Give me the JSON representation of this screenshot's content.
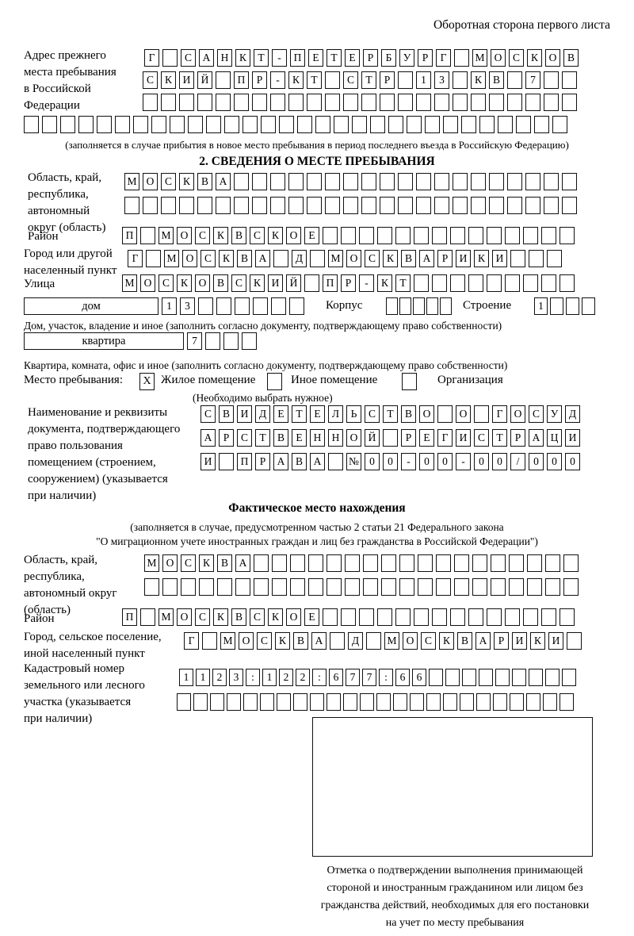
{
  "header": {
    "note": "Оборотная сторона первого листа"
  },
  "prev_address": {
    "label": "Адрес прежнего\nместа пребывания\nв Российской\nФедерации",
    "row1": {
      "text": "Г САНКТ-ПЕТЕРБУРГ МОСКОВ",
      "len": 24
    },
    "row2": {
      "text": "СКИЙ ПР-КТ СТР 13 КВ 7",
      "len": 24
    },
    "row3": {
      "text": "",
      "len": 24
    },
    "row4": {
      "text": "",
      "len": 30
    },
    "note": "(заполняется в случае прибытия в новое место пребывания в период последнего въезда в Российскую Федерацию)"
  },
  "stay_info": {
    "title": "2. СВЕДЕНИЯ О МЕСТЕ ПРЕБЫВАНИЯ",
    "region_label": "Область, край,\nреспублика,\nавтономный\nокруг (область)",
    "region_row1": {
      "text": "МОСКВА",
      "len": 25
    },
    "region_row2": {
      "text": "",
      "len": 25
    },
    "district_label": "Район",
    "district_row": {
      "text": "П МОСКВСКОЕ",
      "len": 25
    },
    "city_label": "Город или другой\nнаселенный пункт",
    "city_row": {
      "text": "Г МОСКВА Д МОСКВАРИКИ",
      "len": 24
    },
    "street_label": "Улица",
    "street_row": {
      "text": "МОСКОВСКИЙ ПР-КТ",
      "len": 25
    },
    "house_box_label": "дом",
    "house_row": {
      "text": "13",
      "len": 8
    },
    "korpus_label": "Корпус",
    "korpus_row": {
      "text": "",
      "len": 5
    },
    "stroenie_label": "Строение",
    "stroenie_row": {
      "text": "1",
      "len": 4
    },
    "house_note": "Дом, участок, владение и иное (заполнить согласно документу, подтверждающему право собственности)",
    "apartment_box_label": "квартира",
    "apartment_row": {
      "text": "7",
      "len": 4
    },
    "apartment_note": "Квартира, комната, офис и иное (заполнить согласно документу, подтверждающему право собственности)",
    "stay_type": {
      "label": "Место пребывания:",
      "options": [
        {
          "label": "Жилое помещение",
          "checked": true
        },
        {
          "label": "Иное помещение",
          "checked": false
        },
        {
          "label": "Организация",
          "checked": false
        }
      ],
      "note": "(Необходимо выбрать нужное)"
    },
    "document_label": "Наименование и реквизиты\nдокумента, подтверждающего\nправо пользования\nпомещением (строением,\nсооружением) (указывается\nпри наличии)",
    "document_row1": {
      "text": "СВИДЕТЕЛЬСТВО О ГОСУД",
      "len": 21
    },
    "document_row2": {
      "text": "АРСТВЕННОЙ РЕГИСТРАЦИ",
      "len": 21
    },
    "document_row3": {
      "text": "И ПРАВА №00-00-00/000",
      "len": 21
    }
  },
  "actual_location": {
    "title": "Фактическое место нахождения",
    "note": "(заполняется в случае, предусмотренном частью 2 статьи 21 Федерального закона\n\"О миграционном учете иностранных граждан и лиц без гражданства в Российской Федерации\")",
    "region_label": "Область, край,\nреспублика,\nавтономный округ\n(область)",
    "region_row1": {
      "text": "МОСКВА",
      "len": 24
    },
    "region_row2": {
      "text": "",
      "len": 24
    },
    "district_label": "Район",
    "district_row": {
      "text": "П МОСКВСКОЕ",
      "len": 25
    },
    "city_label": "Город, сельское поселение,\nиной населенный пункт",
    "city_row": {
      "text": "Г МОСКВА Д МОСКВАРИКИ",
      "len": 22
    },
    "cadastral_label": "Кадастровый номер\nземельного или лесного\nучастка (указывается\nпри наличии)",
    "cadastral_row1": {
      "text": "1123:122:677:66",
      "len": 24
    },
    "cadastral_row2": {
      "text": "",
      "len": 24
    },
    "stamp_caption": "Отметка о подтверждении выполнения принимающей\nстороной и иностранным гражданином или лицом без\nгражданства действий, необходимых для его постановки\nна учет по месту пребывания"
  }
}
